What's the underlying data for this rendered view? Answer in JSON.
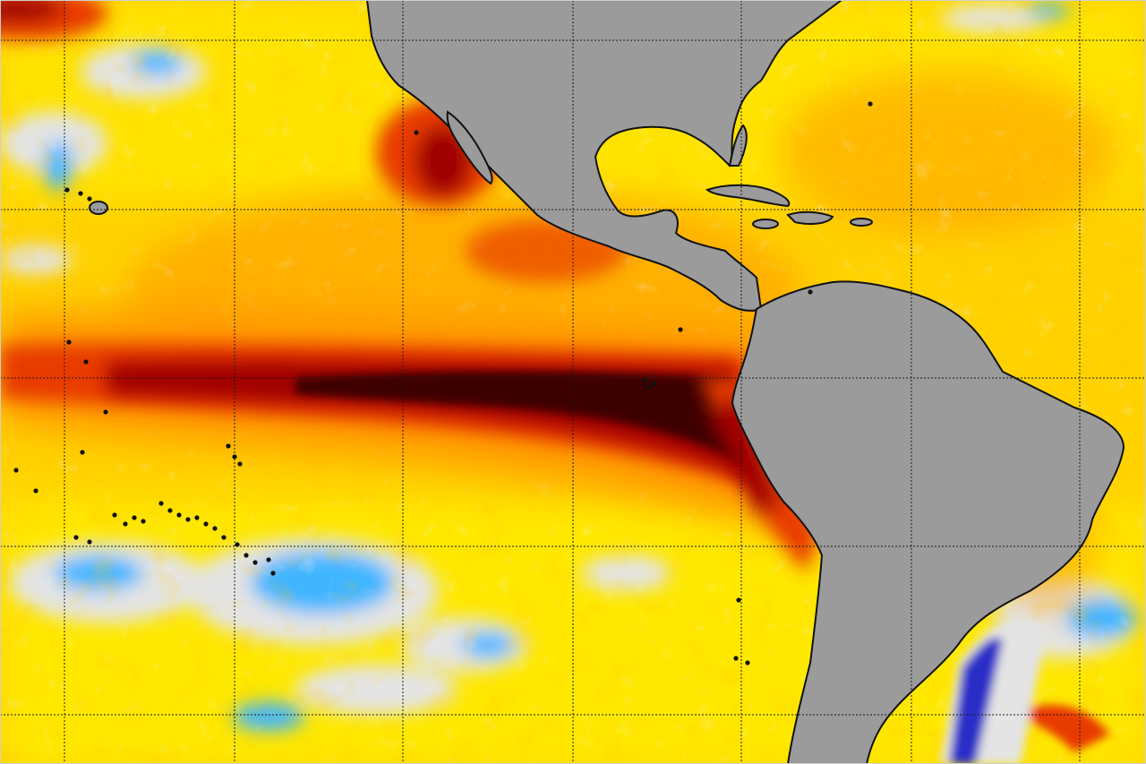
{
  "map": {
    "kind": "sea-surface-temperature-anomaly",
    "land_color": "#9b9b9b",
    "coast_color": "#111111",
    "grid_color": "#1a1a1a",
    "palette": {
      "cold_deep": "#2b2fc7",
      "cold": "#3fb6ff",
      "neutral": "#e4e4e4",
      "warm_light": "#fff200",
      "warm": "#ffd200",
      "hot": "#ff9a00",
      "very_hot": "#e83a00",
      "extreme": "#a00000",
      "max": "#3d0000"
    },
    "features": {
      "equatorial_warm_tongue": "extreme",
      "coastal_peru_anomaly": "extreme",
      "baja_california_anomaly": "very_hot",
      "south_pacific_cool_patch": "cold",
      "south_atlantic_cool_patch": "cold_deep"
    }
  }
}
